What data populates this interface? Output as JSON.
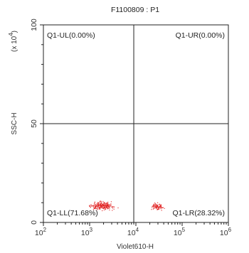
{
  "chart_data": {
    "type": "scatter",
    "title": "F1100809 : P1",
    "xlabel": "Violet610-H",
    "ylabel": "SSC-H",
    "y_multiplier": "(x 10",
    "y_multiplier_exp": "4",
    "y_multiplier_close": ")",
    "x_scale": "log",
    "y_scale": "linear",
    "xlim": [
      100,
      1000000
    ],
    "ylim": [
      0,
      100
    ],
    "x_ticks": [
      {
        "base": "10",
        "exp": "2"
      },
      {
        "base": "10",
        "exp": "3"
      },
      {
        "base": "10",
        "exp": "4"
      },
      {
        "base": "10",
        "exp": "5"
      },
      {
        "base": "10",
        "exp": "6"
      }
    ],
    "y_ticks": [
      "0",
      "50",
      "100"
    ],
    "quadrant_gate": {
      "x": 9000,
      "y": 50
    },
    "quadrants": [
      {
        "name": "Q1-UL",
        "label": "Q1-UL(0.00%)",
        "percent": 0.0
      },
      {
        "name": "Q1-UR",
        "label": "Q1-UR(0.00%)",
        "percent": 0.0
      },
      {
        "name": "Q1-LL",
        "label": "Q1-LL(71.68%)",
        "percent": 71.68
      },
      {
        "name": "Q1-LR",
        "label": "Q1-LR(28.32%)",
        "percent": 28.32
      }
    ],
    "point_color": "#e02020",
    "populations": [
      {
        "name": "Q1-LL",
        "x_center": 1800,
        "x_spread_log10": 0.18,
        "y_center": 8.5,
        "y_spread": 1.3,
        "count": 230
      },
      {
        "name": "Q1-LR",
        "x_center": 28000,
        "x_spread_log10": 0.09,
        "y_center": 8.3,
        "y_spread": 1.1,
        "count": 90
      }
    ],
    "grid": false
  }
}
